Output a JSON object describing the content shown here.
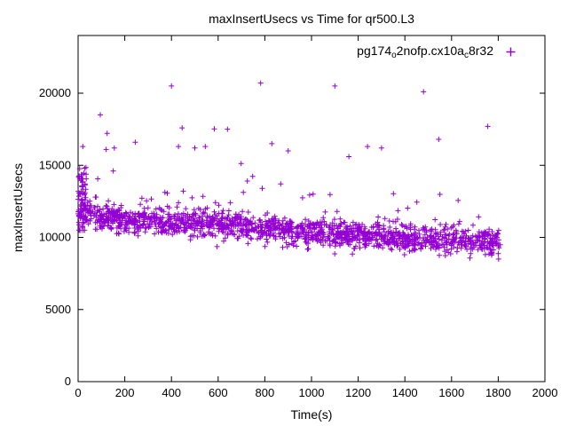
{
  "chart_data": {
    "type": "scatter",
    "title": "maxInsertUsecs vs Time for qr500.L3",
    "xlabel": "Time(s)",
    "ylabel": "maxInsertUsecs",
    "xlim": [
      0,
      2000
    ],
    "ylim": [
      0,
      24000
    ],
    "xticks": [
      0,
      200,
      400,
      600,
      800,
      1000,
      1200,
      1400,
      1600,
      1800,
      2000
    ],
    "yticks": [
      0,
      5000,
      10000,
      15000,
      20000
    ],
    "grid": false,
    "legend_position": "top-right-inside",
    "series_name": "pg174_o2nofp.cx10a_c8r32",
    "legend_label_parts": [
      {
        "text": "pg174"
      },
      {
        "text": "o",
        "sub": true
      },
      {
        "text": "2nofp.cx10a"
      },
      {
        "text": "c",
        "sub": true
      },
      {
        "text": "8r32"
      }
    ],
    "marker": "plus",
    "color": "#9400d3",
    "points_model": {
      "description": "Dense decreasing band of ~1700 samples: mean maxInsertUsecs drifts from ~11800 usec at t=0 down to ~9600 usec at t=1810, spread ~±1000, with sparse upper-tail spikes to 13000-17000 (mostly t<1300) and a dense startup column near t=0 reaching ~16300.",
      "seed": 1337,
      "n_main": 1650,
      "x_max": 1810,
      "sd": 450,
      "trend_x": [
        0,
        100,
        200,
        400,
        600,
        800,
        1000,
        1200,
        1400,
        1600,
        1810
      ],
      "trend_mean": [
        11800,
        11400,
        11250,
        11050,
        10850,
        10550,
        10400,
        10100,
        10000,
        9800,
        9600
      ],
      "tail_fraction": 0.055,
      "tail_scale": 1500,
      "tail_cap": 6200,
      "y_min_clamp": 8200,
      "early_cluster": {
        "n": 60,
        "x_max": 35,
        "mean": 12600,
        "sd": 1400,
        "min": 10500,
        "max": 16400
      }
    },
    "outliers": [
      [
        20,
        16300
      ],
      [
        95,
        18500
      ],
      [
        120,
        16100
      ],
      [
        155,
        16200
      ],
      [
        245,
        16600
      ],
      [
        400,
        20500
      ],
      [
        430,
        16300
      ],
      [
        500,
        16200
      ],
      [
        545,
        16300
      ],
      [
        640,
        17500
      ],
      [
        782,
        20700
      ],
      [
        830,
        16500
      ],
      [
        900,
        16000
      ],
      [
        1100,
        20500
      ],
      [
        1160,
        15600
      ],
      [
        1240,
        16300
      ],
      [
        1300,
        16200
      ],
      [
        1480,
        20100
      ],
      [
        1545,
        16800
      ],
      [
        1755,
        17700
      ]
    ]
  }
}
